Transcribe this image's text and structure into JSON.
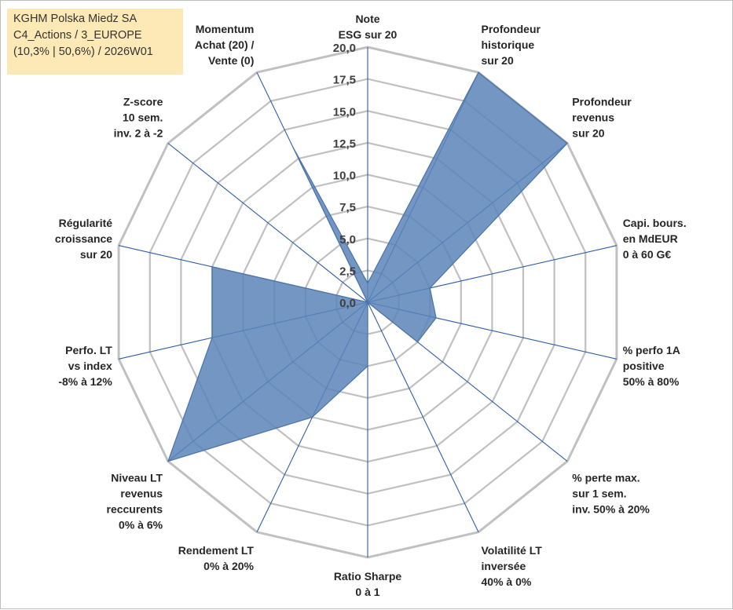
{
  "title_box": {
    "line1": "KGHM Polska Miedz SA",
    "line2": "C4_Actions / 3_EUROPE",
    "line3": "(10,3% | 50,6%) / 2026W01"
  },
  "colors": {
    "fill": "#5b84b8",
    "stroke": "#4a73a8",
    "spoke": "#2e5ea8",
    "ring": "#c0c0c0"
  },
  "chart_data": {
    "type": "radar",
    "title": "KGHM Polska Miedz SA",
    "rmin": 0,
    "rmax": 20,
    "ticks": [
      "0,0",
      "2,5",
      "5,0",
      "7,5",
      "10,0",
      "12,5",
      "15,0",
      "17,5",
      "20,0"
    ],
    "axes": [
      {
        "lines": [
          "Note",
          "ESG sur 20"
        ],
        "value": 1.5
      },
      {
        "lines": [
          "Profondeur",
          "historique",
          "sur 20"
        ],
        "value": 20
      },
      {
        "lines": [
          "Profondeur",
          "revenus",
          "sur 20"
        ],
        "value": 20
      },
      {
        "lines": [
          "Capi. bours.",
          "en MdEUR",
          "0 à 60 G€"
        ],
        "value": 5
      },
      {
        "lines": [
          "% perfo 1A",
          "positive",
          "50% à 80%"
        ],
        "value": 5.5
      },
      {
        "lines": [
          "% perte max.",
          "sur 1 sem.",
          "inv. 50% à 20%"
        ],
        "value": 5
      },
      {
        "lines": [
          "Volatilité LT",
          "inversée",
          "40% à 0%"
        ],
        "value": 0
      },
      {
        "lines": [
          "Ratio Sharpe",
          "0 à 1"
        ],
        "value": 5
      },
      {
        "lines": [
          "Rendement LT",
          "0% à 20%"
        ],
        "value": 10
      },
      {
        "lines": [
          "Niveau LT",
          "revenus",
          "reccurents",
          "0% à 6%"
        ],
        "value": 20
      },
      {
        "lines": [
          "Perfo. LT",
          "vs index",
          "-8% à 12%"
        ],
        "value": 12.5
      },
      {
        "lines": [
          "Régularité",
          "croissance",
          "sur 20"
        ],
        "value": 12.5
      },
      {
        "lines": [
          "Z-score",
          "10 sem.",
          "inv. 2 à -2"
        ],
        "value": 0
      },
      {
        "lines": [
          "Momentum",
          "Achat (20) /",
          "Vente (0)"
        ],
        "value": 13.5
      }
    ]
  }
}
